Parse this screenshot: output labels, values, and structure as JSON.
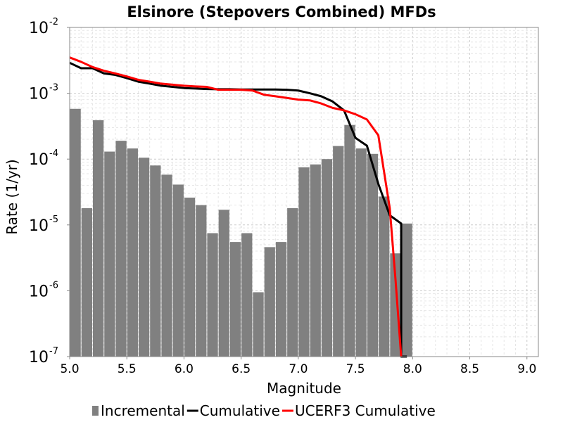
{
  "chart_data": {
    "type": "bar",
    "title": "Elsinore (Stepovers Combined) MFDs",
    "xlabel": "Magnitude",
    "ylabel": "Rate (1/yr)",
    "xlim": [
      5.0,
      9.1
    ],
    "ylim": [
      1e-07,
      0.01
    ],
    "yscale": "log",
    "grid": true,
    "legend_position": "bottom",
    "xticks": [
      "5.0",
      "5.5",
      "6.0",
      "6.5",
      "7.0",
      "7.5",
      "8.0",
      "8.5",
      "9.0"
    ],
    "yticks": [
      {
        "base": "10",
        "exp": "-7"
      },
      {
        "base": "10",
        "exp": "-6"
      },
      {
        "base": "10",
        "exp": "-5"
      },
      {
        "base": "10",
        "exp": "-4"
      },
      {
        "base": "10",
        "exp": "-3"
      },
      {
        "base": "10",
        "exp": "-2"
      }
    ],
    "series": [
      {
        "name": "Incremental",
        "kind": "bar",
        "color": "#808080",
        "bar_width": 0.1,
        "x": [
          5.05,
          5.15,
          5.25,
          5.35,
          5.45,
          5.55,
          5.65,
          5.75,
          5.85,
          5.95,
          6.05,
          6.15,
          6.25,
          6.35,
          6.45,
          6.55,
          6.65,
          6.75,
          6.85,
          6.95,
          7.05,
          7.15,
          7.25,
          7.35,
          7.45,
          7.55,
          7.65,
          7.75,
          7.85,
          7.95
        ],
        "y": [
          0.00058,
          1.8e-05,
          0.00039,
          0.00013,
          0.00019,
          0.000145,
          0.000105,
          8e-05,
          5.8e-05,
          4.1e-05,
          2.6e-05,
          2e-05,
          7.5e-06,
          1.7e-05,
          5.5e-06,
          7.5e-06,
          9.5e-07,
          4.6e-06,
          5.5e-06,
          1.8e-05,
          7.5e-05,
          8.3e-05,
          0.0001,
          0.000158,
          0.00033,
          0.000145,
          0.00012,
          2.7e-05,
          3.7e-06,
          1.05e-05
        ]
      },
      {
        "name": "Cumulative",
        "kind": "line",
        "color": "#000000",
        "x": [
          5.0,
          5.1,
          5.2,
          5.3,
          5.4,
          5.5,
          5.6,
          5.7,
          5.8,
          5.9,
          6.0,
          6.1,
          6.2,
          6.3,
          6.4,
          6.5,
          6.6,
          6.7,
          6.8,
          6.9,
          7.0,
          7.1,
          7.2,
          7.3,
          7.4,
          7.5,
          7.6,
          7.7,
          7.8,
          7.9,
          7.9,
          7.95
        ],
        "y": [
          0.0029,
          0.0024,
          0.0024,
          0.002,
          0.0019,
          0.0017,
          0.0015,
          0.0014,
          0.0013,
          0.00125,
          0.0012,
          0.00118,
          0.00116,
          0.00115,
          0.00115,
          0.00114,
          0.00114,
          0.00114,
          0.00114,
          0.00113,
          0.0011,
          0.001,
          0.0009,
          0.00075,
          0.00055,
          0.00021,
          0.00016,
          4.2e-05,
          1.4e-05,
          1.05e-05,
          1e-07,
          1e-07
        ]
      },
      {
        "name": "UCERF3 Cumulative",
        "kind": "line",
        "color": "#ff0000",
        "x": [
          5.0,
          5.1,
          5.2,
          5.3,
          5.4,
          5.5,
          5.6,
          5.7,
          5.8,
          5.9,
          6.0,
          6.1,
          6.2,
          6.3,
          6.4,
          6.5,
          6.6,
          6.7,
          6.8,
          6.9,
          7.0,
          7.1,
          7.2,
          7.3,
          7.4,
          7.5,
          7.6,
          7.7,
          7.8,
          7.85,
          7.9
        ],
        "y": [
          0.0035,
          0.003,
          0.0025,
          0.0022,
          0.002,
          0.0018,
          0.0016,
          0.0015,
          0.0014,
          0.00135,
          0.0013,
          0.00127,
          0.00125,
          0.00113,
          0.00113,
          0.00113,
          0.0011,
          0.00095,
          0.0009,
          0.00085,
          0.0008,
          0.00078,
          0.0007,
          0.0006,
          0.00055,
          0.00048,
          0.0004,
          0.00023,
          1.8e-05,
          1.5e-06,
          1e-07
        ]
      }
    ]
  }
}
